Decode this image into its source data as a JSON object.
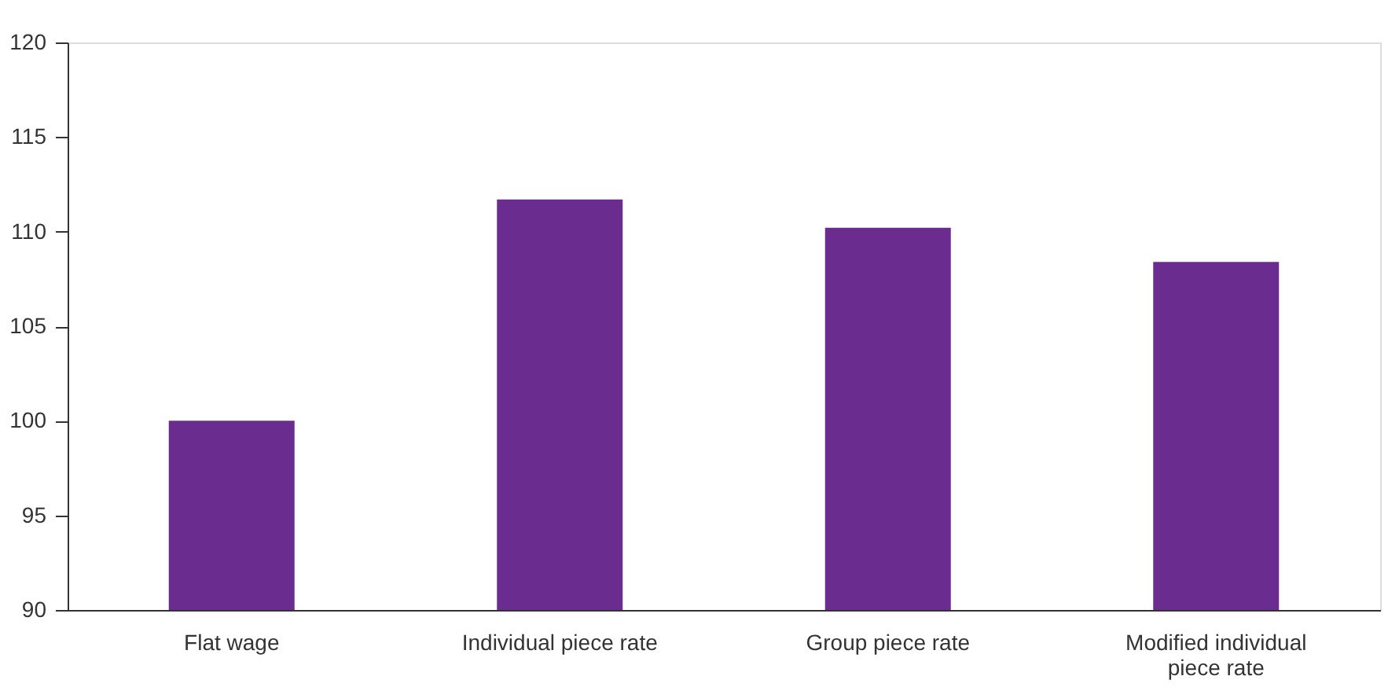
{
  "chart_data": {
    "type": "bar",
    "categories": [
      "Flat wage",
      "Individual piece rate",
      "Group piece rate",
      "Modified individual piece rate"
    ],
    "values": [
      100,
      111.7,
      110.2,
      108.4
    ],
    "color": "#6b2c8f",
    "ylim": [
      90,
      120
    ],
    "yticks": [
      90,
      95,
      100,
      105,
      110,
      115,
      120
    ],
    "grid": false
  }
}
